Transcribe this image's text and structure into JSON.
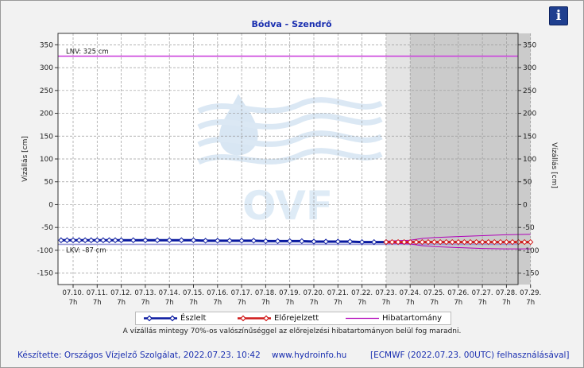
{
  "chart_data": {
    "type": "line",
    "title": "Bódva - Szendrő",
    "ylabel": "Vízállás [cm]",
    "ylabel_right": "Vízállás [cm]",
    "ylim": [
      -175,
      375
    ],
    "yticks": [
      -150,
      -100,
      -50,
      0,
      50,
      100,
      150,
      200,
      250,
      300,
      350
    ],
    "xlim": [
      0,
      19
    ],
    "x_dates": [
      "07.10.",
      "07.11.",
      "07.12.",
      "07.13.",
      "07.14.",
      "07.15.",
      "07.16.",
      "07.17.",
      "07.18.",
      "07.19.",
      "07.20.",
      "07.21.",
      "07.22.",
      "07.23.",
      "07.24.",
      "07.25.",
      "07.26.",
      "07.27.",
      "07.28.",
      "07.29."
    ],
    "x_hour": "7h",
    "grid": true,
    "thresholds": [
      {
        "label": "LNV: 325 cm",
        "value": 325,
        "color": "#cc44dd"
      },
      {
        "label": "LKV: -87 cm",
        "value": -87,
        "color": "#9a9ad8"
      }
    ],
    "shaded_regions": [
      {
        "from": 13,
        "to": 14,
        "color": "#e4e4e4"
      },
      {
        "from": 14,
        "to": 19,
        "color": "#cbcbcb"
      }
    ],
    "series": [
      {
        "name": "Észlelt",
        "color": "#0a1aa0",
        "x": [
          -0.5,
          -0.25,
          0,
          0.25,
          0.5,
          0.75,
          1,
          1.25,
          1.5,
          1.75,
          2,
          2.5,
          3,
          3.5,
          4,
          4.5,
          5,
          5.5,
          6,
          6.5,
          7,
          7.5,
          8,
          8.5,
          9,
          9.5,
          10,
          10.5,
          11,
          11.5,
          12,
          12.5,
          13
        ],
        "y": [
          -78,
          -78,
          -78,
          -78,
          -78,
          -78,
          -78,
          -78,
          -78,
          -78,
          -78,
          -78,
          -78,
          -78,
          -78,
          -78,
          -78,
          -79,
          -79,
          -79,
          -79,
          -79,
          -80,
          -80,
          -80,
          -80,
          -81,
          -81,
          -81,
          -81,
          -82,
          -82,
          -82
        ]
      },
      {
        "name": "Előrejelzett",
        "color": "#d01a1a",
        "x": [
          13,
          13.25,
          13.5,
          13.75,
          14,
          14.25,
          14.5,
          14.75,
          15,
          15.25,
          15.5,
          15.75,
          16,
          16.25,
          16.5,
          16.75,
          17,
          17.25,
          17.5,
          17.75,
          18,
          18.25,
          18.5,
          18.75,
          19
        ],
        "y": [
          -82,
          -82,
          -82,
          -82,
          -82,
          -82,
          -82,
          -82,
          -82,
          -82,
          -82,
          -82,
          -82,
          -82,
          -82,
          -82,
          -82,
          -82,
          -82,
          -82,
          -82,
          -82,
          -82,
          -82,
          -82
        ]
      },
      {
        "name": "Hibatartomány",
        "color": "#b000b8",
        "upper_x": [
          13,
          14,
          14.5,
          15,
          16,
          17,
          18,
          19
        ],
        "upper_y": [
          -80,
          -78,
          -74,
          -72,
          -70,
          -68,
          -66,
          -65
        ],
        "lower_x": [
          13,
          14,
          14.5,
          15,
          16,
          17,
          18,
          19
        ],
        "lower_y": [
          -84,
          -86,
          -90,
          -92,
          -94,
          -96,
          -97,
          -97
        ]
      }
    ],
    "legend_position": "bottom",
    "watermark": "OVF"
  },
  "note": "A vízállás mintegy 70%-os valószínűséggel az előrejelzési hibatartományon belül fog maradni.",
  "footer": {
    "left": "Készítette: Országos Vízjelző Szolgálat, 2022.07.23. 10:42",
    "mid": "www.hydroinfo.hu",
    "right": "[ECMWF (2022.07.23. 00UTC) felhasználásával]"
  },
  "info_icon": "info-icon"
}
